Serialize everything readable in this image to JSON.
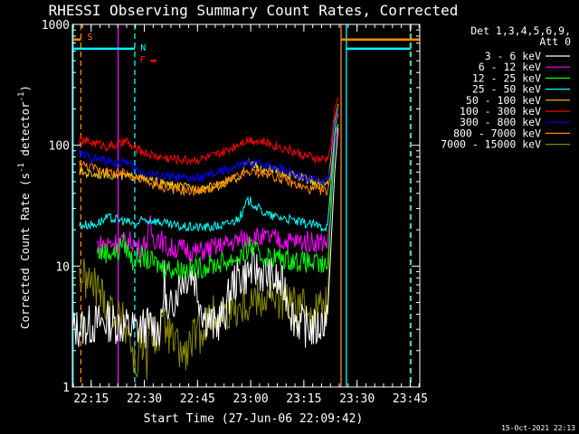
{
  "chart_data": {
    "type": "line",
    "title": "RHESSI Observing Summary Count Rates, Corrected",
    "xlabel": "Start Time (27-Jun-06 22:09:42)",
    "ylabel": "Corrected Count Rate (s⁻¹ detector⁻¹)",
    "ylabel_parts": {
      "main": "Corrected Count Rate (s",
      "sup1": "-1",
      "mid": " detector",
      "sup2": "-1",
      "end": ")"
    },
    "yscale": "log",
    "ylim": [
      1,
      1000
    ],
    "xlim_minutes": [
      0,
      98
    ],
    "x_ticks": [
      {
        "label": "22:15",
        "min": 5.3
      },
      {
        "label": "22:30",
        "min": 20.3
      },
      {
        "label": "22:45",
        "min": 35.3
      },
      {
        "label": "23:00",
        "min": 50.3
      },
      {
        "label": "23:15",
        "min": 65.3
      },
      {
        "label": "23:30",
        "min": 80.3
      },
      {
        "label": "23:45",
        "min": 95.3
      }
    ],
    "y_ticks": [
      {
        "label": "1",
        "value": 1
      },
      {
        "label": "10",
        "value": 10
      },
      {
        "label": "100",
        "value": 100
      },
      {
        "label": "1000",
        "value": 1000
      }
    ],
    "legend_header": [
      "Det 1,3,4,5,6,9,",
      "Att 0"
    ],
    "series": [
      {
        "name": "3 - 6 keV",
        "color": "#ffffff",
        "points": [
          [
            0,
            3
          ],
          [
            10,
            3.5
          ],
          [
            18,
            3
          ],
          [
            22,
            3.2
          ],
          [
            25,
            3
          ],
          [
            26,
            8
          ],
          [
            27,
            3
          ],
          [
            28,
            5
          ],
          [
            31,
            8
          ],
          [
            34,
            9
          ],
          [
            37,
            4
          ],
          [
            40,
            3.2
          ],
          [
            43,
            4
          ],
          [
            45,
            7
          ],
          [
            47,
            8
          ],
          [
            49,
            8.5
          ],
          [
            51,
            9.5
          ],
          [
            53,
            9
          ],
          [
            56,
            8
          ],
          [
            60,
            6.5
          ],
          [
            62,
            4
          ],
          [
            65,
            3.2
          ],
          [
            69,
            3
          ],
          [
            72,
            4
          ],
          [
            74,
            60
          ],
          [
            75,
            140
          ]
        ]
      },
      {
        "name": "6 - 12 keV",
        "color": "#ff00ff",
        "points": [
          [
            7,
            15
          ],
          [
            14,
            16
          ],
          [
            17,
            16
          ],
          [
            19,
            14
          ],
          [
            20,
            15
          ],
          [
            21,
            16
          ],
          [
            22,
            22
          ],
          [
            23,
            16
          ],
          [
            24,
            18
          ],
          [
            27,
            14
          ],
          [
            31,
            14
          ],
          [
            35,
            13
          ],
          [
            39,
            14
          ],
          [
            43,
            15
          ],
          [
            46,
            16
          ],
          [
            49,
            17
          ],
          [
            51,
            18
          ],
          [
            53,
            17
          ],
          [
            56,
            17
          ],
          [
            60,
            16
          ],
          [
            64,
            16
          ],
          [
            68,
            16
          ],
          [
            72,
            16
          ],
          [
            73,
            30
          ],
          [
            74,
            100
          ],
          [
            75,
            150
          ]
        ]
      },
      {
        "name": "12 - 25 keV",
        "color": "#00ff00",
        "points": [
          [
            7,
            13
          ],
          [
            13,
            13
          ],
          [
            14,
            16
          ],
          [
            16,
            13
          ],
          [
            17,
            11
          ],
          [
            19,
            12
          ],
          [
            22,
            11
          ],
          [
            25,
            10
          ],
          [
            28,
            9.5
          ],
          [
            31,
            9.5
          ],
          [
            34,
            9.5
          ],
          [
            38,
            10
          ],
          [
            41,
            10.5
          ],
          [
            44,
            11
          ],
          [
            47,
            12
          ],
          [
            49,
            13
          ],
          [
            50,
            15
          ],
          [
            51,
            14
          ],
          [
            53,
            12
          ],
          [
            56,
            12
          ],
          [
            60,
            11.5
          ],
          [
            64,
            11
          ],
          [
            68,
            10.5
          ],
          [
            71,
            10
          ],
          [
            72,
            10
          ],
          [
            73,
            30
          ],
          [
            74,
            120
          ],
          [
            75,
            150
          ]
        ]
      },
      {
        "name": "25 - 50 keV",
        "color": "#00ffff",
        "points": [
          [
            2,
            22
          ],
          [
            6,
            22
          ],
          [
            10,
            25
          ],
          [
            14,
            24
          ],
          [
            18,
            22
          ],
          [
            20,
            24
          ],
          [
            23,
            24
          ],
          [
            27,
            22
          ],
          [
            31,
            21
          ],
          [
            35,
            21
          ],
          [
            39,
            21
          ],
          [
            43,
            22
          ],
          [
            46,
            24
          ],
          [
            48,
            27
          ],
          [
            49,
            33
          ],
          [
            50,
            35
          ],
          [
            51,
            33
          ],
          [
            53,
            29
          ],
          [
            56,
            26
          ],
          [
            60,
            25
          ],
          [
            64,
            23
          ],
          [
            68,
            22
          ],
          [
            71,
            21
          ],
          [
            72,
            22
          ],
          [
            73,
            50
          ],
          [
            74,
            130
          ],
          [
            75,
            200
          ]
        ]
      },
      {
        "name": "50 - 100 keV",
        "color": "#ffcc00",
        "points": [
          [
            2,
            60
          ],
          [
            6,
            58
          ],
          [
            10,
            58
          ],
          [
            14,
            55
          ],
          [
            17,
            55
          ],
          [
            18,
            58
          ],
          [
            20,
            52
          ],
          [
            23,
            50
          ],
          [
            27,
            47
          ],
          [
            31,
            45
          ],
          [
            35,
            44
          ],
          [
            39,
            45
          ],
          [
            43,
            48
          ],
          [
            46,
            53
          ],
          [
            48,
            58
          ],
          [
            49,
            70
          ],
          [
            50,
            76
          ],
          [
            51,
            70
          ],
          [
            53,
            63
          ],
          [
            56,
            62
          ],
          [
            60,
            58
          ],
          [
            64,
            55
          ],
          [
            68,
            50
          ],
          [
            71,
            47
          ],
          [
            72,
            48
          ],
          [
            73,
            80
          ],
          [
            74,
            160
          ],
          [
            75,
            220
          ]
        ]
      },
      {
        "name": "100 - 300 keV",
        "color": "#ff0000",
        "points": [
          [
            2,
            110
          ],
          [
            6,
            105
          ],
          [
            10,
            98
          ],
          [
            14,
            102
          ],
          [
            15,
            110
          ],
          [
            17,
            95
          ],
          [
            20,
            88
          ],
          [
            23,
            82
          ],
          [
            27,
            78
          ],
          [
            31,
            76
          ],
          [
            35,
            76
          ],
          [
            39,
            80
          ],
          [
            43,
            88
          ],
          [
            46,
            100
          ],
          [
            48,
            108
          ],
          [
            50,
            112
          ],
          [
            52,
            110
          ],
          [
            55,
            104
          ],
          [
            58,
            98
          ],
          [
            61,
            92
          ],
          [
            64,
            85
          ],
          [
            67,
            80
          ],
          [
            70,
            76
          ],
          [
            72,
            76
          ],
          [
            73,
            100
          ],
          [
            74,
            200
          ],
          [
            75,
            250
          ]
        ]
      },
      {
        "name": "300 - 800 keV",
        "color": "#0000ff",
        "points": [
          [
            2,
            85
          ],
          [
            6,
            78
          ],
          [
            10,
            74
          ],
          [
            14,
            70
          ],
          [
            15,
            75
          ],
          [
            17,
            65
          ],
          [
            20,
            60
          ],
          [
            23,
            57
          ],
          [
            27,
            55
          ],
          [
            31,
            53
          ],
          [
            35,
            53
          ],
          [
            39,
            57
          ],
          [
            43,
            62
          ],
          [
            46,
            66
          ],
          [
            48,
            69
          ],
          [
            50,
            71
          ],
          [
            52,
            71
          ],
          [
            55,
            69
          ],
          [
            58,
            66
          ],
          [
            61,
            61
          ],
          [
            64,
            56
          ],
          [
            67,
            53
          ],
          [
            70,
            51
          ],
          [
            72,
            51
          ],
          [
            73,
            70
          ],
          [
            74,
            150
          ],
          [
            75,
            200
          ]
        ]
      },
      {
        "name": "800 - 7000 keV",
        "color": "#ff8800",
        "points": [
          [
            2,
            70
          ],
          [
            6,
            65
          ],
          [
            10,
            60
          ],
          [
            14,
            58
          ],
          [
            15,
            60
          ],
          [
            17,
            55
          ],
          [
            20,
            51
          ],
          [
            23,
            47
          ],
          [
            27,
            44
          ],
          [
            31,
            42
          ],
          [
            35,
            42
          ],
          [
            39,
            44
          ],
          [
            43,
            49
          ],
          [
            46,
            54
          ],
          [
            48,
            57
          ],
          [
            50,
            60
          ],
          [
            52,
            60
          ],
          [
            55,
            57
          ],
          [
            58,
            54
          ],
          [
            61,
            50
          ],
          [
            64,
            46
          ],
          [
            67,
            43
          ],
          [
            70,
            42
          ],
          [
            72,
            42
          ],
          [
            73,
            60
          ],
          [
            74,
            150
          ],
          [
            75,
            180
          ]
        ]
      },
      {
        "name": "7000 - 15000 keV",
        "color": "#888800",
        "points": [
          [
            2,
            8.5
          ],
          [
            4,
            7.5
          ],
          [
            6,
            7
          ],
          [
            8,
            6
          ],
          [
            10,
            5
          ],
          [
            12,
            4
          ],
          [
            14,
            3.5
          ],
          [
            16,
            2.8
          ],
          [
            18,
            1.3
          ],
          [
            19,
            2.5
          ],
          [
            21,
            1.6
          ],
          [
            22,
            3
          ],
          [
            24,
            2.5
          ],
          [
            26,
            3.2
          ],
          [
            28,
            2.5
          ],
          [
            30,
            2
          ],
          [
            32,
            1.8
          ],
          [
            34,
            2.5
          ],
          [
            36,
            2.8
          ],
          [
            38,
            3.5
          ],
          [
            40,
            4
          ],
          [
            43,
            4.2
          ],
          [
            46,
            4.5
          ],
          [
            49,
            5
          ],
          [
            52,
            5.5
          ],
          [
            56,
            5.5
          ],
          [
            60,
            5
          ],
          [
            63,
            4.5
          ],
          [
            66,
            4.5
          ],
          [
            69,
            4.5
          ],
          [
            72,
            4.5
          ],
          [
            73,
            50
          ],
          [
            74,
            130
          ],
          [
            75,
            150
          ]
        ]
      }
    ],
    "flags": [
      {
        "name": "S",
        "color": "#ff8800"
      },
      {
        "name": "N",
        "color": "#00ffff"
      },
      {
        "name": "F",
        "color": "#ff0000"
      }
    ],
    "attenuator_levels": [
      {
        "name": "cyan",
        "color": "#00ffff",
        "value": 630
      },
      {
        "name": "orange",
        "color": "#ff8800",
        "value": 750
      }
    ],
    "vertical_markers": [
      {
        "color": "#ff8800",
        "style": "dashed",
        "min": 2.4
      },
      {
        "color": "#00ffff",
        "style": "dashed",
        "min": 17.6
      },
      {
        "color": "#ff00ff",
        "style": "solid",
        "min": 12.9
      },
      {
        "color": "#ff8800",
        "style": "solid",
        "min": 75.8
      },
      {
        "color": "#00ffff",
        "style": "solid",
        "min": 77.3
      },
      {
        "color": "#ff8800",
        "style": "dashed",
        "min": 95.3
      },
      {
        "color": "#00ffff",
        "style": "dashed",
        "min": 95.5
      },
      {
        "color": "#00ffff",
        "style": "solid",
        "min": 0.2
      }
    ],
    "footer": "15-Oct-2021 22:13"
  }
}
